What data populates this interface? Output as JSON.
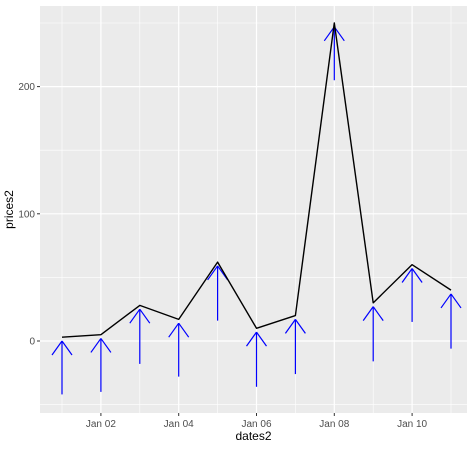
{
  "chart_data": {
    "type": "line",
    "xlabel": "dates2",
    "ylabel": "prices2",
    "x": [
      "Jan 01",
      "Jan 02",
      "Jan 03",
      "Jan 04",
      "Jan 05",
      "Jan 06",
      "Jan 07",
      "Jan 08",
      "Jan 09",
      "Jan 10",
      "Jan 11"
    ],
    "x_tick_labels": [
      "Jan 02",
      "Jan 04",
      "Jan 06",
      "Jan 08",
      "Jan 10"
    ],
    "y_tick_labels": [
      "0",
      "100",
      "200"
    ],
    "ylim": [
      -55,
      262
    ],
    "grid": true,
    "series": [
      {
        "values": [
          3,
          5,
          28,
          17,
          62,
          10,
          20,
          250,
          30,
          60,
          40
        ],
        "color": "#000000"
      }
    ],
    "arrows": {
      "color": "#0000ff",
      "tails": [
        -42,
        -40,
        -18,
        -28,
        16,
        -36,
        -26,
        205,
        -16,
        15,
        -6
      ],
      "heads": [
        0,
        2,
        25,
        14,
        59,
        7,
        17,
        247,
        27,
        57,
        37
      ]
    },
    "panel_background": "#ebebeb",
    "grid_color": "#ffffff"
  }
}
